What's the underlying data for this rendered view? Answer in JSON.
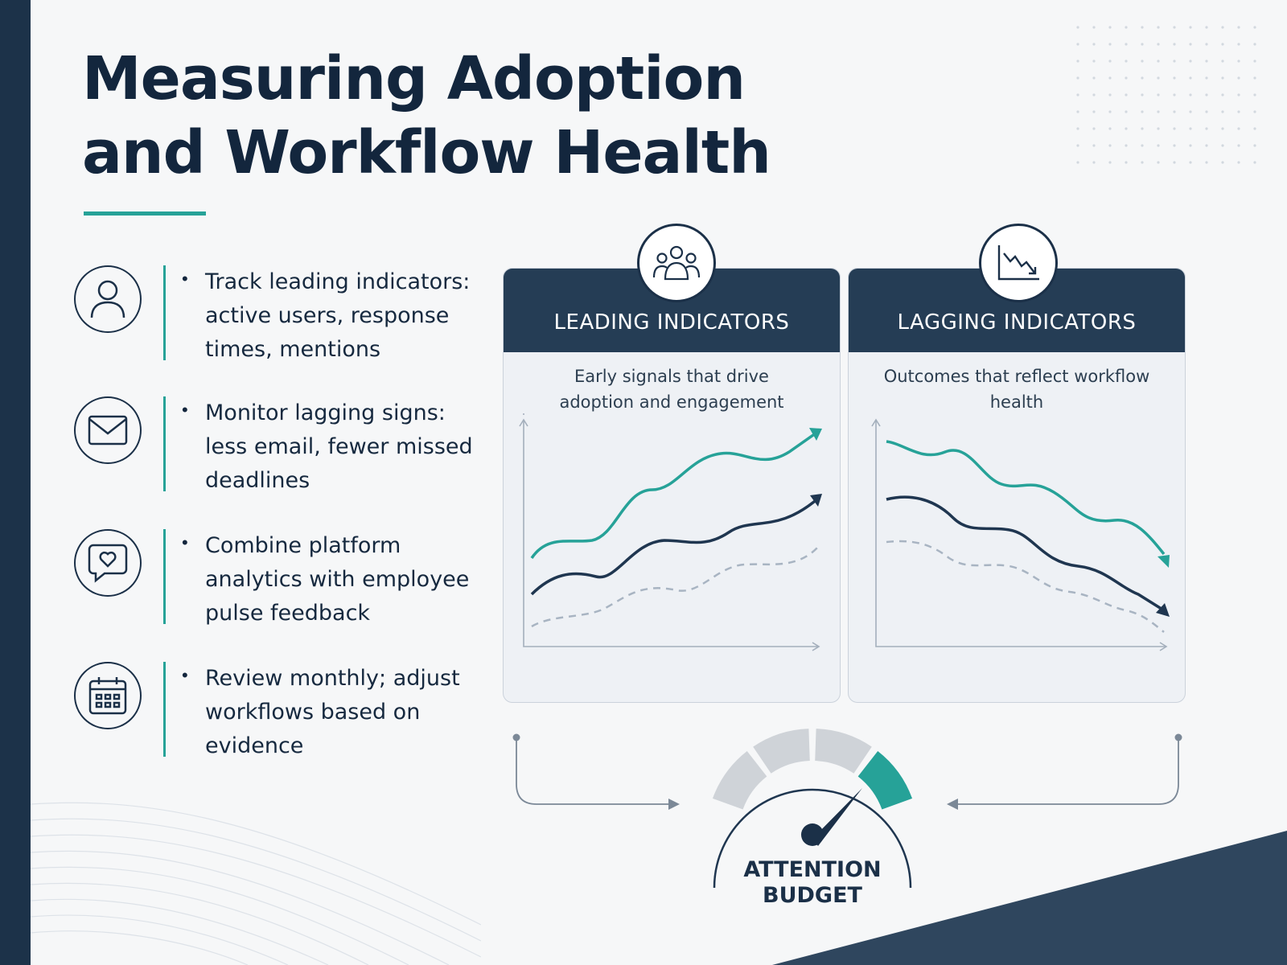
{
  "title": {
    "line1": "Measuring Adoption",
    "line2": "and Workflow Health"
  },
  "colors": {
    "navy": "#1c3249",
    "teal": "#26a298",
    "muted": "#a8b4c2",
    "background": "#f6f7f8"
  },
  "bullets": [
    {
      "icon": "person-icon",
      "text": "Track leading indicators: active users, response times, mentions"
    },
    {
      "icon": "envelope-icon",
      "text": "Monitor lagging signs: less email, fewer missed deadlines"
    },
    {
      "icon": "heart-chat-icon",
      "text": "Combine platform analytics with employee pulse feedback"
    },
    {
      "icon": "calendar-icon",
      "text": "Review monthly; adjust workflows based on evidence"
    }
  ],
  "panels": {
    "leading": {
      "icon": "group-icon",
      "title": "LEADING INDICATORS",
      "subtitle": "Early signals that drive adoption and engagement"
    },
    "lagging": {
      "icon": "declining-chart-icon",
      "title": "LAGGING INDICATORS",
      "subtitle": "Outcomes that reflect workflow health"
    }
  },
  "gauge": {
    "label_line1": "ATTENTION",
    "label_line2": "BUDGET",
    "segments": 4,
    "highlighted_segment": 4
  }
}
